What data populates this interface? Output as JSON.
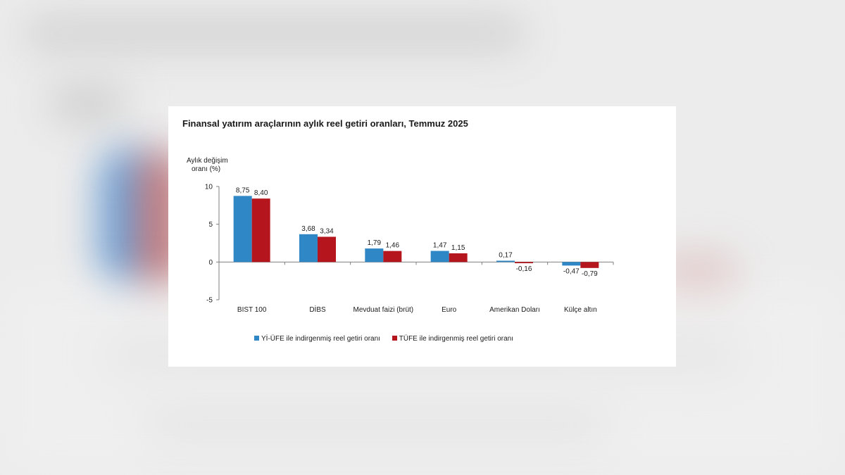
{
  "colors": {
    "series1": "#2f87c6",
    "series2": "#b5161e",
    "axis": "#7f7f7f",
    "text": "#1a1a1a"
  },
  "chart_data": {
    "type": "bar",
    "title": "Finansal yatırım araçlarının aylık reel getiri oranları, Temmuz 2025",
    "ylabel_lines": [
      "Aylık değişim",
      "oranı (%)"
    ],
    "xlabel": "",
    "ylim": [
      -5,
      10
    ],
    "yticks": [
      "10",
      "5",
      "0",
      "-5"
    ],
    "ytick_values": [
      10,
      5,
      0,
      -5
    ],
    "categories": [
      "BIST 100",
      "DİBS",
      "Mevduat faizi (brüt)",
      "Euro",
      "Amerikan Doları",
      "Külçe altın"
    ],
    "series": [
      {
        "name": "Yİ-ÜFE ile indirgenmiş reel getiri oranı",
        "values": [
          8.75,
          3.68,
          1.79,
          1.47,
          0.17,
          -0.47
        ],
        "labels": [
          "8,75",
          "3,68",
          "1,79",
          "1,47",
          "0,17",
          "-0,47"
        ]
      },
      {
        "name": "TÜFE ile indirgenmiş reel getiri oranı",
        "values": [
          8.4,
          3.34,
          1.46,
          1.15,
          -0.16,
          -0.79
        ],
        "labels": [
          "8,40",
          "3,34",
          "1,46",
          "1,15",
          "-0,16",
          "-0,79"
        ]
      }
    ],
    "legend_position": "bottom"
  }
}
